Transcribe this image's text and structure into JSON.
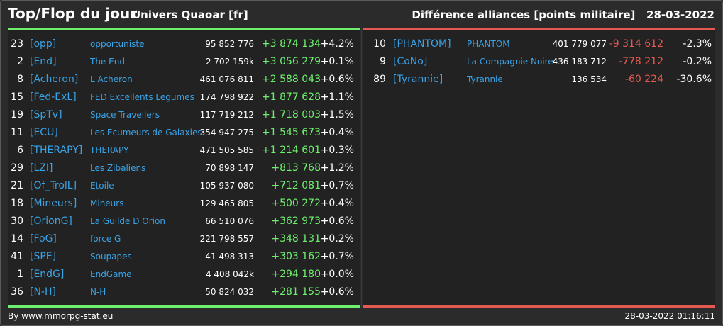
{
  "header": {
    "title": "Top/Flop du jour",
    "subtitle": "Univers Quaoar [fr]",
    "right_title": "Différence alliances [points militaire]",
    "date": "28-03-2022"
  },
  "colors": {
    "gain": "#6ef06e",
    "loss": "#e45a52",
    "tag": "#3aa3e6"
  },
  "top": [
    {
      "rank": "23",
      "tag": "[opp]",
      "name": "opportuniste",
      "points": "95 852 776",
      "diff": "+3 874 134",
      "pct": "+4.2%"
    },
    {
      "rank": "2",
      "tag": "[End]",
      "name": "The End",
      "points": "2 702 159k",
      "diff": "+3 056 279",
      "pct": "+0.1%"
    },
    {
      "rank": "8",
      "tag": "[Acheron]",
      "name": "L Acheron",
      "points": "461 076 811",
      "diff": "+2 588 043",
      "pct": "+0.6%"
    },
    {
      "rank": "15",
      "tag": "[Fed-ExL]",
      "name": "FED Excellents Legumes",
      "points": "174 798 922",
      "diff": "+1 877 628",
      "pct": "+1.1%"
    },
    {
      "rank": "19",
      "tag": "[SpTv]",
      "name": "Space Travellers",
      "points": "117 719 212",
      "diff": "+1 718 003",
      "pct": "+1.5%"
    },
    {
      "rank": "11",
      "tag": "[ECU]",
      "name": "Les Ecumeurs de Galaxies",
      "points": "354 947 275",
      "diff": "+1 545 673",
      "pct": "+0.4%"
    },
    {
      "rank": "6",
      "tag": "[THERAPY]",
      "name": "THERAPY",
      "points": "471 505 585",
      "diff": "+1 214 601",
      "pct": "+0.3%"
    },
    {
      "rank": "29",
      "tag": "[LZI]",
      "name": "Les Zibaliens",
      "points": "70 898 147",
      "diff": "+813 768",
      "pct": "+1.2%"
    },
    {
      "rank": "21",
      "tag": "[Of_TrolL]",
      "name": "Etoile",
      "points": "105 937 080",
      "diff": "+712 081",
      "pct": "+0.7%"
    },
    {
      "rank": "18",
      "tag": "[Mineurs]",
      "name": "Mineurs",
      "points": "129 465 805",
      "diff": "+500 272",
      "pct": "+0.4%"
    },
    {
      "rank": "30",
      "tag": "[OrionG]",
      "name": "La Guilde D Orion",
      "points": "66 510 076",
      "diff": "+362 973",
      "pct": "+0.6%"
    },
    {
      "rank": "14",
      "tag": "[FoG]",
      "name": "force G",
      "points": "221 798 557",
      "diff": "+348 131",
      "pct": "+0.2%"
    },
    {
      "rank": "41",
      "tag": "[SPE]",
      "name": "Soupapes",
      "points": "41 498 313",
      "diff": "+303 162",
      "pct": "+0.7%"
    },
    {
      "rank": "1",
      "tag": "[EndG]",
      "name": "EndGame",
      "points": "4 408 042k",
      "diff": "+294 180",
      "pct": "+0.0%"
    },
    {
      "rank": "36",
      "tag": "[N-H]",
      "name": "N-H",
      "points": "50 824 032",
      "diff": "+281 155",
      "pct": "+0.6%"
    }
  ],
  "flop": [
    {
      "rank": "10",
      "tag": "[PHANTOM]",
      "name": "PHANTOM",
      "points": "401 779 077",
      "diff": "-9 314 612",
      "pct": "-2.3%"
    },
    {
      "rank": "9",
      "tag": "[CoNo]",
      "name": "La Compagnie Noire",
      "points": "436 183 712",
      "diff": "-778 212",
      "pct": "-0.2%"
    },
    {
      "rank": "89",
      "tag": "[Tyrannie]",
      "name": "Tyrannie",
      "points": "136 534",
      "diff": "-60 224",
      "pct": "-30.6%"
    }
  ],
  "footer": {
    "source": "By www.mmorpg-stat.eu",
    "timestamp": "28-03-2022 01:16:11"
  }
}
